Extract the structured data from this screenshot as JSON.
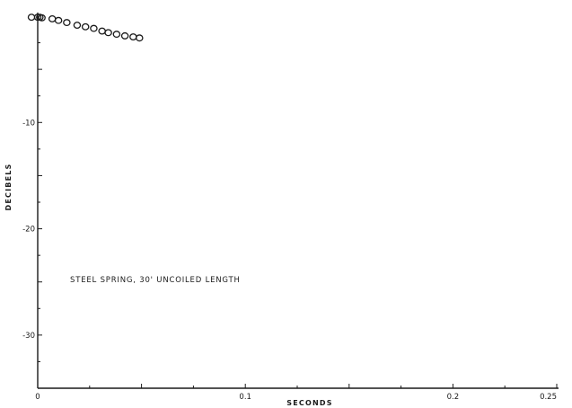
{
  "chart_data": {
    "type": "scatter",
    "title": "",
    "xlabel": "SECONDS",
    "ylabel": "DECIBELS",
    "xlim": [
      0,
      0.25
    ],
    "ylim": [
      -35,
      0
    ],
    "x_ticks": [
      {
        "value": 0,
        "label": "0"
      },
      {
        "value": 0.1,
        "label": "0.1"
      },
      {
        "value": 0.2,
        "label": "0.2"
      },
      {
        "value": 0.25,
        "label": "0.25"
      }
    ],
    "y_ticks": [
      {
        "value": -10,
        "label": "-10"
      },
      {
        "value": -20,
        "label": "-20"
      },
      {
        "value": -30,
        "label": "-30"
      }
    ],
    "annotation": "STEEL SPRING, 30' UNCOILED LENGTH",
    "grid": false,
    "series": [
      {
        "marker": "open-circle",
        "x": [
          -0.003,
          0.0,
          0.001,
          0.002,
          0.007,
          0.01,
          0.014,
          0.019,
          0.023,
          0.027,
          0.031,
          0.034,
          0.038,
          0.042,
          0.046,
          0.049
        ],
        "y": [
          -0.1,
          -0.1,
          -0.1,
          -0.15,
          -0.25,
          -0.4,
          -0.6,
          -0.85,
          -1.0,
          -1.15,
          -1.4,
          -1.55,
          -1.7,
          -1.85,
          -1.95,
          -2.05
        ]
      }
    ]
  }
}
